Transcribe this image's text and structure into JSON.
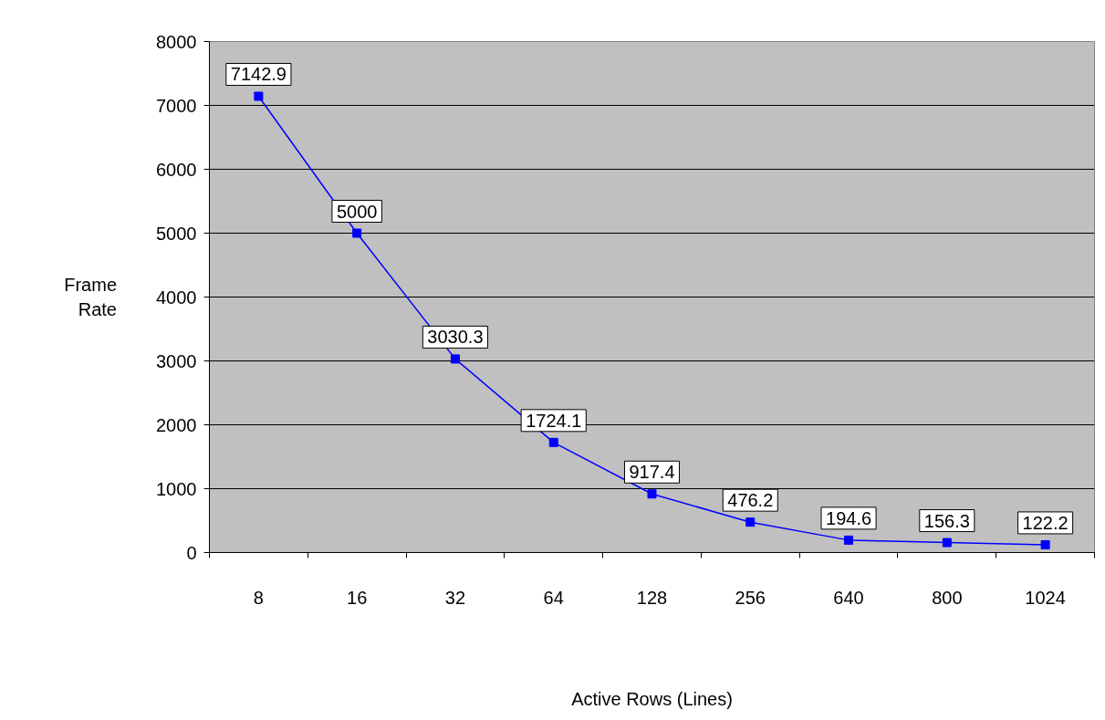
{
  "chart_data": {
    "type": "line",
    "xlabel": "Active Rows (Lines)",
    "ylabel": "Frame Rate",
    "categories": [
      "8",
      "16",
      "32",
      "64",
      "128",
      "256",
      "640",
      "800",
      "1024"
    ],
    "series": [
      {
        "color": "#0000ff",
        "values": [
          7142.9,
          5000,
          3030.3,
          1724.1,
          917.4,
          476.2,
          194.6,
          156.3,
          122.2
        ]
      }
    ],
    "ylim": [
      0,
      8000
    ],
    "yticks": [
      0,
      1000,
      2000,
      3000,
      4000,
      5000,
      6000,
      7000,
      8000
    ],
    "grid": "y",
    "marker": "square",
    "line_style": "solid",
    "data_labels": true
  }
}
